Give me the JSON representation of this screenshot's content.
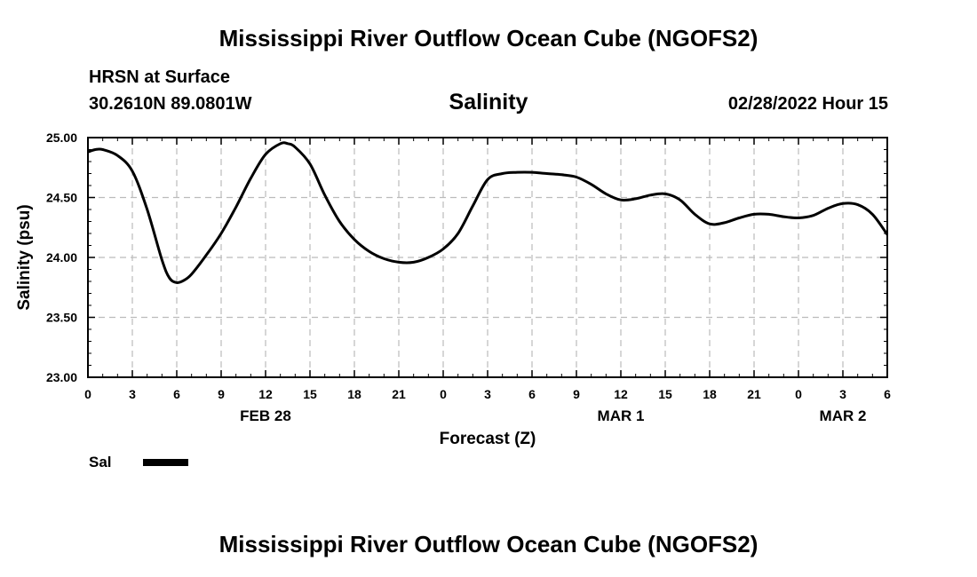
{
  "header": {
    "title": "Mississippi River Outflow Ocean Cube (NGOFS2)",
    "station": "HRSN at Surface",
    "coords": "30.2610N  89.0801W",
    "variable": "Salinity",
    "datetime": "02/28/2022 Hour 15"
  },
  "footer": {
    "title": "Mississippi River Outflow Ocean Cube (NGOFS2)"
  },
  "legend": {
    "label": "Sal"
  },
  "chart_data": {
    "type": "line",
    "title": "Salinity",
    "xlabel": "Forecast (Z)",
    "ylabel": "Salinity (psu)",
    "xlim": [
      0,
      54
    ],
    "ylim": [
      23.0,
      25.0
    ],
    "yticks": [
      "23.00",
      "23.50",
      "24.00",
      "24.50",
      "25.00"
    ],
    "ytick_values": [
      23.0,
      23.5,
      24.0,
      24.5,
      25.0
    ],
    "xticks": [
      "0",
      "3",
      "6",
      "9",
      "12",
      "15",
      "18",
      "21",
      "0",
      "3",
      "6",
      "9",
      "12",
      "15",
      "18",
      "21",
      "0",
      "3",
      "6"
    ],
    "date_labels": [
      {
        "label": "FEB 28",
        "hour": 12
      },
      {
        "label": "MAR 1",
        "hour": 36
      },
      {
        "label": "MAR 2",
        "hour": 51
      }
    ],
    "grid": true,
    "series": [
      {
        "name": "Sal",
        "x": [
          0,
          0.5,
          1,
          2,
          3,
          4,
          5,
          5.5,
          6,
          6.5,
          7,
          8,
          9,
          10,
          11,
          12,
          13,
          13.5,
          14,
          15,
          16,
          17,
          18,
          19,
          20,
          21,
          22,
          23,
          24,
          25,
          26,
          27,
          28,
          29,
          30,
          31,
          32,
          33,
          34,
          35,
          36,
          37,
          38,
          39,
          40,
          41,
          42,
          43,
          44,
          45,
          46,
          47,
          48,
          49,
          50,
          51,
          52,
          53,
          54
        ],
        "values": [
          24.88,
          24.9,
          24.9,
          24.85,
          24.72,
          24.4,
          23.98,
          23.83,
          23.79,
          23.81,
          23.86,
          24.02,
          24.2,
          24.42,
          24.66,
          24.86,
          24.95,
          24.95,
          24.92,
          24.78,
          24.52,
          24.3,
          24.15,
          24.05,
          23.99,
          23.96,
          23.96,
          24.0,
          24.07,
          24.2,
          24.43,
          24.65,
          24.7,
          24.71,
          24.71,
          24.7,
          24.69,
          24.67,
          24.61,
          24.53,
          24.48,
          24.49,
          24.52,
          24.53,
          24.48,
          24.36,
          24.28,
          24.29,
          24.33,
          24.36,
          24.36,
          24.34,
          24.33,
          24.35,
          24.41,
          24.45,
          24.44,
          24.36,
          24.19
        ]
      }
    ]
  }
}
